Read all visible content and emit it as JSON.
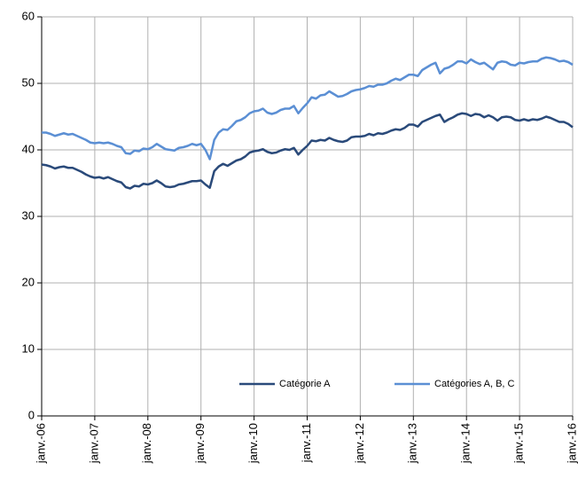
{
  "chart_data": {
    "type": "line",
    "categories": [
      "janv.-06",
      null,
      null,
      null,
      null,
      null,
      null,
      null,
      null,
      null,
      null,
      null,
      "janv.-07",
      null,
      null,
      null,
      null,
      null,
      null,
      null,
      null,
      null,
      null,
      null,
      "janv.-08",
      null,
      null,
      null,
      null,
      null,
      null,
      null,
      null,
      null,
      null,
      null,
      "janv.-09",
      null,
      null,
      null,
      null,
      null,
      null,
      null,
      null,
      null,
      null,
      null,
      "janv.-10",
      null,
      null,
      null,
      null,
      null,
      null,
      null,
      null,
      null,
      null,
      null,
      "janv.-11",
      null,
      null,
      null,
      null,
      null,
      null,
      null,
      null,
      null,
      null,
      null,
      "janv.-12",
      null,
      null,
      null,
      null,
      null,
      null,
      null,
      null,
      null,
      null,
      null,
      "janv.-13",
      null,
      null,
      null,
      null,
      null,
      null,
      null,
      null,
      null,
      null,
      null,
      "janv.-14",
      null,
      null,
      null,
      null,
      null,
      null,
      null,
      null,
      null,
      null,
      null,
      "janv.-15",
      null,
      null,
      null,
      null,
      null,
      null,
      null,
      null,
      null,
      null,
      null,
      "janv.-16"
    ],
    "series": [
      {
        "name": "Catégorie A",
        "color": "#2a4a7a",
        "values": [
          37.8,
          37.7,
          37.5,
          37.2,
          37.4,
          37.5,
          37.3,
          37.3,
          37.0,
          36.7,
          36.3,
          36.0,
          35.8,
          35.9,
          35.7,
          35.9,
          35.6,
          35.3,
          35.1,
          34.4,
          34.2,
          34.6,
          34.5,
          34.9,
          34.8,
          35.0,
          35.4,
          35.0,
          34.5,
          34.4,
          34.5,
          34.8,
          34.9,
          35.1,
          35.3,
          35.3,
          35.4,
          34.8,
          34.3,
          36.8,
          37.5,
          37.9,
          37.6,
          38.0,
          38.4,
          38.6,
          39.0,
          39.6,
          39.8,
          39.9,
          40.1,
          39.7,
          39.5,
          39.6,
          39.9,
          40.1,
          40.0,
          40.3,
          39.3,
          40.0,
          40.6,
          41.4,
          41.3,
          41.5,
          41.4,
          41.8,
          41.5,
          41.3,
          41.2,
          41.4,
          41.9,
          42.0,
          42.0,
          42.1,
          42.4,
          42.2,
          42.5,
          42.4,
          42.6,
          42.9,
          43.1,
          43.0,
          43.3,
          43.8,
          43.8,
          43.5,
          44.2,
          44.5,
          44.8,
          45.1,
          45.3,
          44.2,
          44.6,
          44.9,
          45.3,
          45.5,
          45.4,
          45.1,
          45.4,
          45.3,
          44.9,
          45.2,
          44.9,
          44.4,
          44.9,
          45.0,
          44.9,
          44.5,
          44.4,
          44.6,
          44.4,
          44.6,
          44.5,
          44.7,
          45.0,
          44.8,
          44.5,
          44.2,
          44.2,
          43.9,
          43.4
        ]
      },
      {
        "name": "Catégories A, B, C",
        "color": "#5b8fd4",
        "values": [
          42.6,
          42.6,
          42.4,
          42.1,
          42.3,
          42.5,
          42.3,
          42.4,
          42.1,
          41.8,
          41.5,
          41.1,
          41.0,
          41.1,
          41.0,
          41.1,
          40.9,
          40.6,
          40.4,
          39.5,
          39.4,
          39.9,
          39.8,
          40.2,
          40.1,
          40.4,
          40.9,
          40.5,
          40.1,
          40.0,
          39.9,
          40.3,
          40.4,
          40.6,
          40.9,
          40.7,
          40.9,
          40.0,
          38.6,
          41.5,
          42.6,
          43.1,
          43.0,
          43.6,
          44.3,
          44.5,
          44.9,
          45.5,
          45.8,
          45.9,
          46.2,
          45.6,
          45.4,
          45.6,
          46.0,
          46.2,
          46.2,
          46.6,
          45.5,
          46.3,
          47.0,
          47.9,
          47.7,
          48.2,
          48.3,
          48.8,
          48.4,
          48.0,
          48.1,
          48.4,
          48.8,
          49.0,
          49.1,
          49.3,
          49.6,
          49.5,
          49.8,
          49.8,
          50.0,
          50.4,
          50.7,
          50.5,
          50.9,
          51.3,
          51.3,
          51.1,
          52.0,
          52.4,
          52.8,
          53.1,
          51.5,
          52.2,
          52.4,
          52.8,
          53.3,
          53.3,
          53.0,
          53.6,
          53.2,
          52.9,
          53.1,
          52.6,
          52.1,
          53.1,
          53.3,
          53.2,
          52.8,
          52.7,
          53.1,
          53.0,
          53.2,
          53.3,
          53.3,
          53.7,
          53.9,
          53.8,
          53.6,
          53.3,
          53.4,
          53.2,
          52.8
        ]
      }
    ],
    "ylim": [
      0,
      60
    ],
    "yticks": [
      0,
      10,
      20,
      30,
      40,
      50,
      60
    ],
    "grid": true,
    "legend": "bottom"
  }
}
